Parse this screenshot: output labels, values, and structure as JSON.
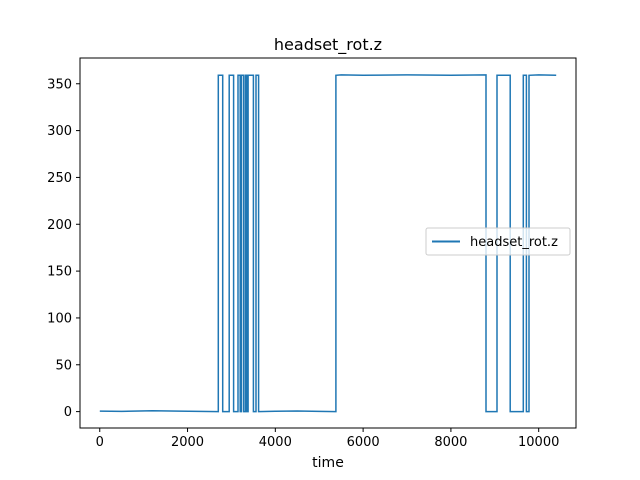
{
  "chart_data": {
    "type": "line",
    "title": "headset_rot.z",
    "xlabel": "time",
    "ylabel": "",
    "xlim": [
      -450,
      10850
    ],
    "ylim": [
      -17.5,
      377.5
    ],
    "xticks": [
      0,
      2000,
      4000,
      6000,
      8000,
      10000
    ],
    "yticks": [
      0,
      50,
      100,
      150,
      200,
      250,
      300,
      350
    ],
    "grid": false,
    "legend": {
      "placement": "center-right"
    },
    "series": [
      {
        "name": "headset_rot.z",
        "color": "#1f77b4",
        "points": [
          [
            0,
            0.5
          ],
          [
            500,
            0.2
          ],
          [
            1200,
            1.0
          ],
          [
            1800,
            0.5
          ],
          [
            2700,
            0
          ],
          [
            2700,
            359
          ],
          [
            2800,
            359
          ],
          [
            2800,
            0
          ],
          [
            2950,
            0
          ],
          [
            2950,
            359
          ],
          [
            3050,
            359
          ],
          [
            3050,
            0
          ],
          [
            3150,
            0
          ],
          [
            3150,
            359
          ],
          [
            3200,
            359
          ],
          [
            3200,
            0
          ],
          [
            3230,
            0
          ],
          [
            3230,
            359
          ],
          [
            3280,
            359
          ],
          [
            3280,
            0
          ],
          [
            3320,
            0
          ],
          [
            3320,
            359
          ],
          [
            3350,
            359
          ],
          [
            3350,
            0
          ],
          [
            3380,
            0
          ],
          [
            3380,
            359
          ],
          [
            3500,
            359
          ],
          [
            3500,
            0
          ],
          [
            3560,
            0
          ],
          [
            3560,
            359
          ],
          [
            3620,
            359
          ],
          [
            3620,
            0
          ],
          [
            4000,
            0.3
          ],
          [
            4500,
            0.6
          ],
          [
            5000,
            0.2
          ],
          [
            5380,
            0
          ],
          [
            5380,
            359
          ],
          [
            5500,
            359.5
          ],
          [
            6000,
            359
          ],
          [
            7000,
            359.5
          ],
          [
            8000,
            359
          ],
          [
            8800,
            359.5
          ],
          [
            8800,
            0
          ],
          [
            9050,
            0
          ],
          [
            9050,
            359
          ],
          [
            9350,
            359
          ],
          [
            9350,
            0
          ],
          [
            9650,
            0
          ],
          [
            9650,
            359
          ],
          [
            9720,
            359
          ],
          [
            9720,
            0
          ],
          [
            9780,
            0
          ],
          [
            9780,
            359
          ],
          [
            10000,
            359.5
          ],
          [
            10400,
            359
          ]
        ]
      }
    ]
  }
}
